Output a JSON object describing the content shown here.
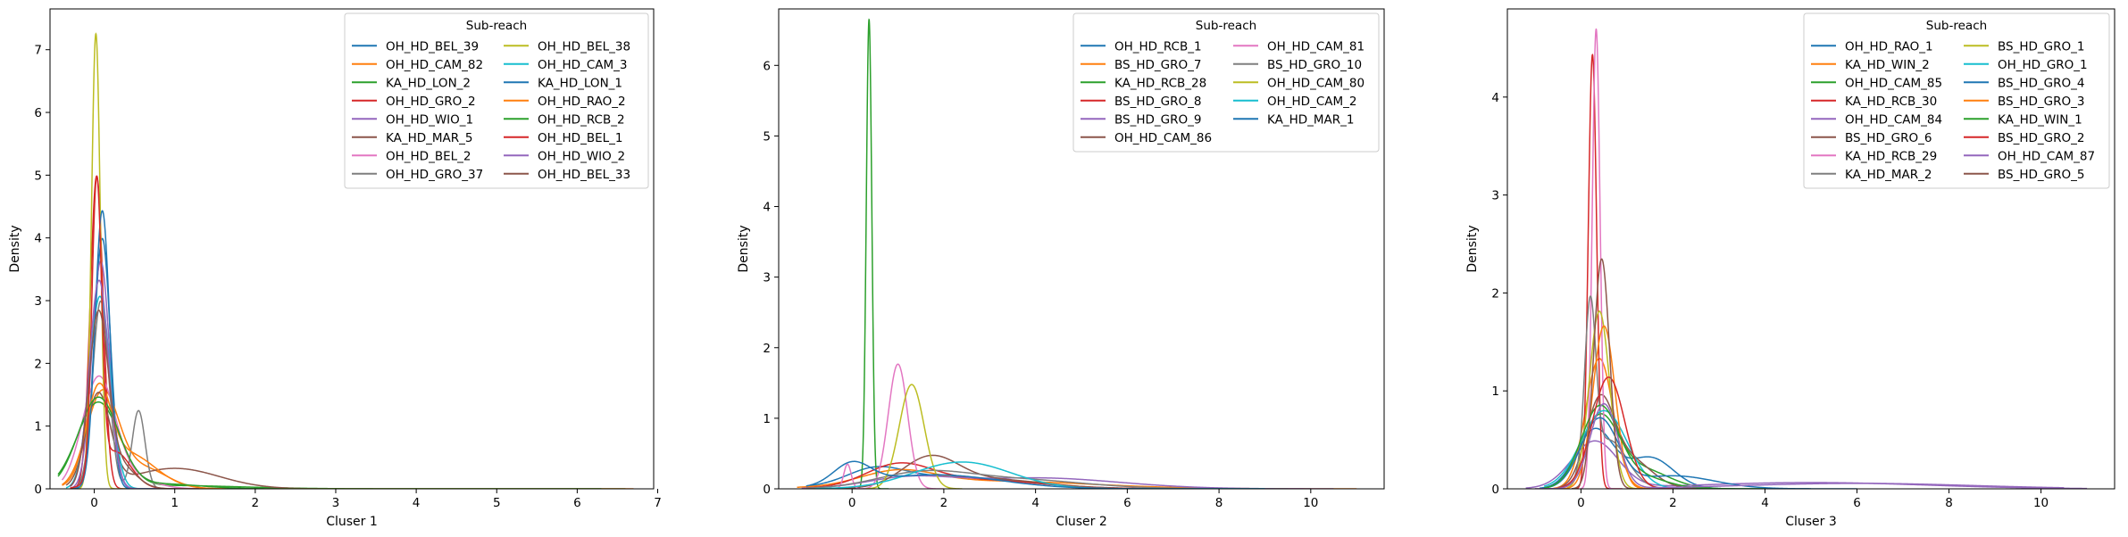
{
  "colors": [
    "#1f77b4",
    "#ff7f0e",
    "#2ca02c",
    "#d62728",
    "#9467bd",
    "#8c564b",
    "#e377c2",
    "#7f7f7f",
    "#bcbd22",
    "#17becf"
  ],
  "chart_data": [
    {
      "type": "line",
      "xlabel": "Cluser 1",
      "ylabel": "Density",
      "xlim": [
        -0.55,
        6.95
      ],
      "ylim": [
        0,
        7.65
      ],
      "xticks": [
        0,
        1,
        2,
        3,
        4,
        5,
        6,
        7
      ],
      "yticks": [
        0,
        1,
        2,
        3,
        4,
        5,
        6,
        7
      ],
      "legend": {
        "title": "Sub-reach",
        "placement": "top-right",
        "columns": 2,
        "entries": [
          "OH_HD_BEL_39",
          "OH_HD_CAM_82",
          "KA_HD_LON_2",
          "OH_HD_GRO_2",
          "OH_HD_WIO_1",
          "KA_HD_MAR_5",
          "OH_HD_BEL_2",
          "OH_HD_GRO_37",
          "OH_HD_BEL_38",
          "OH_HD_CAM_3",
          "KA_HD_LON_1",
          "OH_HD_RAO_2",
          "OH_HD_RCB_2",
          "OH_HD_BEL_1",
          "OH_HD_WIO_2",
          "OH_HD_BEL_33"
        ]
      },
      "series": [
        {
          "name": "OH_HD_BEL_39",
          "components": [
            [
              1.0,
              0.1,
              0.1
            ]
          ],
          "range": [
            -0.3,
            1.2
          ]
        },
        {
          "name": "OH_HD_CAM_82",
          "components": [
            [
              0.75,
              0.1,
              0.2
            ],
            [
              0.25,
              0.6,
              0.3
            ]
          ],
          "range": [
            -0.4,
            2.0
          ]
        },
        {
          "name": "KA_HD_LON_2",
          "components": [
            [
              0.88,
              0.05,
              0.26
            ],
            [
              0.12,
              0.9,
              0.9
            ]
          ],
          "range": [
            -0.45,
            6.6
          ]
        },
        {
          "name": "OH_HD_GRO_2",
          "components": [
            [
              1.0,
              0.03,
              0.08
            ]
          ],
          "range": [
            -0.3,
            1.0
          ]
        },
        {
          "name": "OH_HD_WIO_1",
          "components": [
            [
              1.0,
              0.08,
              0.11
            ]
          ],
          "range": [
            -0.3,
            1.0
          ]
        },
        {
          "name": "KA_HD_MAR_5",
          "components": [
            [
              0.55,
              0.05,
              0.15
            ],
            [
              0.45,
              1.0,
              0.55
            ]
          ],
          "range": [
            -0.35,
            2.8
          ]
        },
        {
          "name": "OH_HD_BEL_2",
          "components": [
            [
              0.85,
              0.05,
              0.2
            ],
            [
              0.15,
              0.4,
              0.3
            ]
          ],
          "range": [
            -0.4,
            1.5
          ]
        },
        {
          "name": "OH_HD_GRO_37",
          "components": [
            [
              0.75,
              0.08,
              0.1
            ],
            [
              0.25,
              0.55,
              0.08
            ]
          ],
          "range": [
            -0.3,
            1.0
          ]
        },
        {
          "name": "OH_HD_BEL_38",
          "components": [
            [
              1.0,
              0.02,
              0.055
            ]
          ],
          "range": [
            -0.3,
            0.7
          ]
        },
        {
          "name": "OH_HD_CAM_3",
          "components": [
            [
              1.0,
              0.07,
              0.13
            ]
          ],
          "range": [
            -0.35,
            1.0
          ]
        },
        {
          "name": "KA_HD_LON_1",
          "components": [
            [
              1.0,
              0.1,
              0.09
            ]
          ],
          "range": [
            -0.3,
            0.9
          ]
        },
        {
          "name": "OH_HD_RAO_2",
          "components": [
            [
              0.5,
              0.05,
              0.15
            ],
            [
              0.5,
              0.4,
              0.35
            ]
          ],
          "range": [
            -0.4,
            6.7
          ]
        },
        {
          "name": "OH_HD_RCB_2",
          "components": [
            [
              0.9,
              0.05,
              0.25
            ],
            [
              0.1,
              0.8,
              0.5
            ]
          ],
          "range": [
            -0.45,
            6.3
          ]
        },
        {
          "name": "OH_HD_BEL_1",
          "components": [
            [
              0.7,
              0.03,
              0.06
            ],
            [
              0.3,
              0.25,
              0.2
            ]
          ],
          "range": [
            -0.3,
            1.3
          ]
        },
        {
          "name": "OH_HD_WIO_2",
          "components": [
            [
              1.0,
              0.06,
              0.12
            ]
          ],
          "range": [
            -0.3,
            1.0
          ]
        },
        {
          "name": "OH_HD_BEL_33",
          "components": [
            [
              0.8,
              0.05,
              0.12
            ],
            [
              0.2,
              0.3,
              0.2
            ]
          ],
          "range": [
            -0.3,
            1.3
          ]
        }
      ]
    },
    {
      "type": "line",
      "xlabel": "Cluser 2",
      "ylabel": "Density",
      "xlim": [
        -1.6,
        11.6
      ],
      "ylim": [
        0,
        6.8
      ],
      "xticks": [
        0,
        2,
        4,
        6,
        8,
        10
      ],
      "yticks": [
        0,
        1,
        2,
        3,
        4,
        5,
        6
      ],
      "legend": {
        "title": "Sub-reach",
        "placement": "top-right",
        "columns": 2,
        "entries": [
          "OH_HD_RCB_1",
          "BS_HD_GRO_7",
          "KA_HD_RCB_28",
          "BS_HD_GRO_8",
          "BS_HD_GRO_9",
          "OH_HD_CAM_86",
          "OH_HD_CAM_81",
          "BS_HD_GRO_10",
          "OH_HD_CAM_80",
          "OH_HD_CAM_2",
          "KA_HD_MAR_1"
        ]
      },
      "series": [
        {
          "name": "OH_HD_RCB_1",
          "components": [
            [
              0.3,
              0.5,
              0.6
            ],
            [
              0.7,
              2.0,
              1.6
            ]
          ],
          "range": [
            -1.0,
            10.0
          ]
        },
        {
          "name": "BS_HD_GRO_7",
          "components": [
            [
              0.4,
              1.0,
              0.8
            ],
            [
              0.6,
              3.0,
              2.2
            ]
          ],
          "range": [
            -1.2,
            11.0
          ]
        },
        {
          "name": "KA_HD_RCB_28",
          "components": [
            [
              1.0,
              0.37,
              0.06
            ]
          ],
          "range": [
            0.0,
            0.8
          ]
        },
        {
          "name": "BS_HD_GRO_8",
          "components": [
            [
              0.5,
              1.0,
              0.7
            ],
            [
              0.5,
              2.5,
              1.5
            ]
          ],
          "range": [
            -1.0,
            8.5
          ]
        },
        {
          "name": "BS_HD_GRO_9",
          "components": [
            [
              0.3,
              1.2,
              0.9
            ],
            [
              0.7,
              4.0,
              1.8
            ]
          ],
          "range": [
            -1.1,
            10.5
          ]
        },
        {
          "name": "OH_HD_CAM_86",
          "components": [
            [
              0.6,
              1.7,
              0.6
            ],
            [
              0.4,
              3.0,
              1.2
            ]
          ],
          "range": [
            -0.5,
            8.0
          ]
        },
        {
          "name": "OH_HD_CAM_81",
          "components": [
            [
              0.93,
              1.0,
              0.21
            ],
            [
              0.07,
              -0.1,
              0.08
            ]
          ],
          "range": [
            -0.5,
            2.0
          ]
        },
        {
          "name": "BS_HD_GRO_10",
          "components": [
            [
              0.5,
              1.5,
              1.0
            ],
            [
              0.5,
              3.5,
              1.5
            ]
          ],
          "range": [
            -1.0,
            9.5
          ]
        },
        {
          "name": "OH_HD_CAM_80",
          "components": [
            [
              1.0,
              1.3,
              0.27
            ]
          ],
          "range": [
            0.3,
            2.4
          ]
        },
        {
          "name": "OH_HD_CAM_2",
          "components": [
            [
              1.0,
              2.4,
              1.05
            ]
          ],
          "range": [
            -0.8,
            9.0
          ]
        },
        {
          "name": "KA_HD_MAR_1",
          "components": [
            [
              0.3,
              0.0,
              0.4
            ],
            [
              0.7,
              1.8,
              1.4
            ]
          ],
          "range": [
            -1.0,
            9.0
          ]
        }
      ]
    },
    {
      "type": "line",
      "xlabel": "Cluser 3",
      "ylabel": "Density",
      "xlim": [
        -1.6,
        11.6
      ],
      "ylim": [
        0,
        4.9
      ],
      "xticks": [
        0,
        2,
        4,
        6,
        8,
        10
      ],
      "yticks": [
        0,
        1,
        2,
        3,
        4
      ],
      "legend": {
        "title": "Sub-reach",
        "placement": "top-right",
        "columns": 2,
        "entries": [
          "OH_HD_RAO_1",
          "KA_HD_WIN_2",
          "OH_HD_CAM_85",
          "KA_HD_RCB_30",
          "OH_HD_CAM_84",
          "BS_HD_GRO_6",
          "KA_HD_RCB_29",
          "KA_HD_MAR_2",
          "BS_HD_GRO_1",
          "OH_HD_GRO_1",
          "BS_HD_GRO_4",
          "BS_HD_GRO_3",
          "KA_HD_WIN_1",
          "BS_HD_GRO_2",
          "OH_HD_CAM_87",
          "BS_HD_GRO_5"
        ]
      },
      "series": [
        {
          "name": "OH_HD_RAO_1",
          "components": [
            [
              0.6,
              0.3,
              0.4
            ],
            [
              0.4,
              1.5,
              0.5
            ]
          ],
          "range": [
            -0.9,
            5.0
          ]
        },
        {
          "name": "KA_HD_WIN_2",
          "components": [
            [
              1.0,
              0.4,
              0.3
            ]
          ],
          "range": [
            -0.6,
            2.5
          ]
        },
        {
          "name": "OH_HD_CAM_85",
          "components": [
            [
              0.7,
              0.4,
              0.4
            ],
            [
              0.3,
              1.3,
              0.6
            ]
          ],
          "range": [
            -0.8,
            4.5
          ]
        },
        {
          "name": "KA_HD_RCB_30",
          "components": [
            [
              1.0,
              0.25,
              0.09
            ]
          ],
          "range": [
            -0.1,
            0.9
          ]
        },
        {
          "name": "OH_HD_CAM_84",
          "components": [
            [
              0.6,
              0.3,
              0.5
            ],
            [
              0.4,
              5.0,
              2.5
            ]
          ],
          "range": [
            -1.2,
            11.0
          ]
        },
        {
          "name": "BS_HD_GRO_6",
          "components": [
            [
              0.6,
              0.4,
              0.3
            ],
            [
              0.4,
              1.0,
              0.5
            ]
          ],
          "range": [
            -0.5,
            3.0
          ]
        },
        {
          "name": "KA_HD_RCB_29",
          "components": [
            [
              1.0,
              0.33,
              0.085
            ]
          ],
          "range": [
            0.0,
            0.9
          ]
        },
        {
          "name": "KA_HD_MAR_2",
          "components": [
            [
              0.5,
              0.2,
              0.12
            ],
            [
              0.5,
              0.6,
              0.4
            ]
          ],
          "range": [
            -0.4,
            2.4
          ]
        },
        {
          "name": "BS_HD_GRO_1",
          "components": [
            [
              1.0,
              0.4,
              0.22
            ]
          ],
          "range": [
            -0.3,
            1.8
          ]
        },
        {
          "name": "OH_HD_GRO_1",
          "components": [
            [
              1.0,
              0.5,
              0.5
            ]
          ],
          "range": [
            -0.8,
            3.0
          ]
        },
        {
          "name": "BS_HD_GRO_4",
          "components": [
            [
              0.7,
              0.4,
              0.4
            ],
            [
              0.3,
              2.0,
              0.9
            ]
          ],
          "range": [
            -0.9,
            6.0
          ]
        },
        {
          "name": "BS_HD_GRO_3",
          "components": [
            [
              1.0,
              0.5,
              0.24
            ]
          ],
          "range": [
            -0.4,
            2.0
          ]
        },
        {
          "name": "KA_HD_WIN_1",
          "components": [
            [
              0.8,
              0.4,
              0.4
            ],
            [
              0.2,
              1.2,
              0.6
            ]
          ],
          "range": [
            -0.8,
            4.0
          ]
        },
        {
          "name": "BS_HD_GRO_2",
          "components": [
            [
              1.0,
              0.6,
              0.35
            ]
          ],
          "range": [
            -0.5,
            2.5
          ]
        },
        {
          "name": "OH_HD_CAM_87",
          "components": [
            [
              0.65,
              0.5,
              0.3
            ],
            [
              0.35,
              6.0,
              2.5
            ]
          ],
          "range": [
            -1.0,
            10.5
          ]
        },
        {
          "name": "BS_HD_GRO_5",
          "components": [
            [
              1.0,
              0.45,
              0.17
            ]
          ],
          "range": [
            -0.2,
            1.5
          ]
        }
      ]
    }
  ]
}
